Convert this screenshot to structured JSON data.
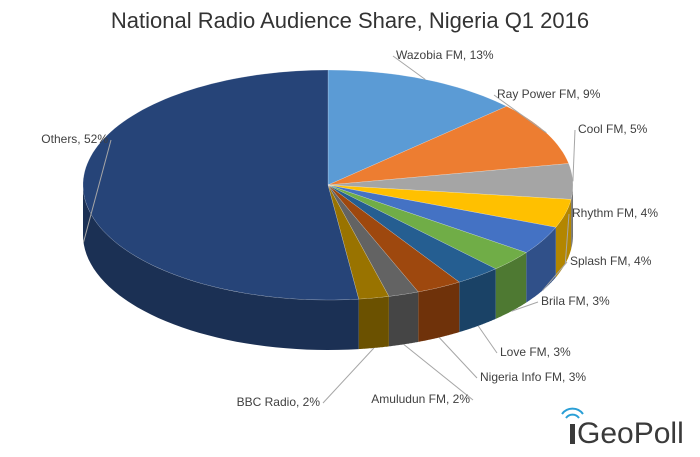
{
  "chart_data": {
    "type": "pie3d",
    "title": "National Radio Audience Share, Nigeria Q1 2016",
    "values": [
      13,
      9,
      5,
      4,
      4,
      3,
      3,
      3,
      2,
      2,
      52
    ],
    "value_labels": [
      "Wazobia FM, 13%",
      "Ray Power FM, 9%",
      "Cool FM, 5%",
      "Rhythm FM, 4%",
      "Splash FM, 4%",
      "Brila FM, 3%",
      "Love FM, 3%",
      "Nigeria Info FM, 3%",
      "Amuludun FM, 2%",
      "BBC Radio, 2%",
      "Others, 52%"
    ],
    "colors": [
      "#5b9bd5",
      "#ed7d31",
      "#a5a5a5",
      "#ffc000",
      "#4472c4",
      "#70ad47",
      "#255e91",
      "#9e480e",
      "#636363",
      "#997300",
      "#264478"
    ]
  },
  "logo": "GeoPoll"
}
